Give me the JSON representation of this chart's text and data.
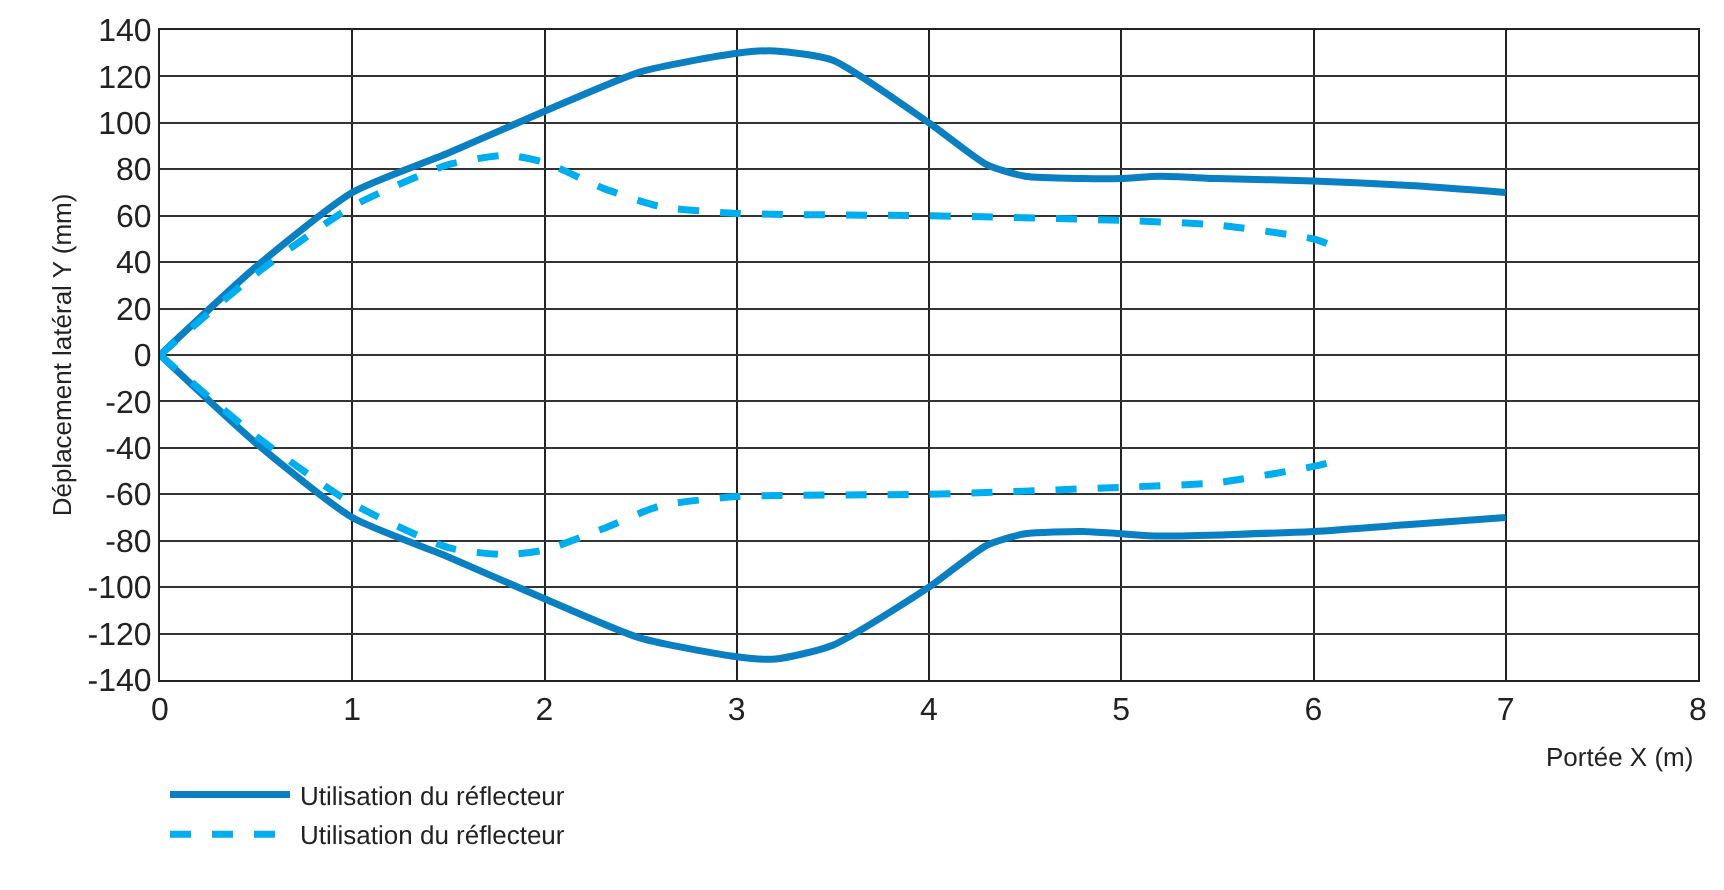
{
  "chart_data": {
    "type": "line",
    "xlabel": "Portée X (m)",
    "ylabel": "Déplacement latéral Y (mm)",
    "xlim": [
      0,
      8
    ],
    "xticks": [
      0,
      1,
      2,
      3,
      4,
      5,
      6,
      7,
      8
    ],
    "ylim": [
      -140,
      140
    ],
    "yticks": [
      -140,
      -120,
      -100,
      -80,
      -60,
      -40,
      -20,
      0,
      20,
      40,
      60,
      80,
      100,
      120,
      140
    ],
    "grid": true,
    "legend": "bottom left",
    "marker": "none",
    "series": [
      {
        "name": "Utilisation du réflecteur",
        "color": "#0a7fc1",
        "line_style": "solid",
        "x": [
          0,
          0.5,
          1,
          1.5,
          2,
          2.5,
          3,
          3.2,
          3.5,
          4,
          4.3,
          4.5,
          4.8,
          5,
          5.2,
          5.5,
          6,
          6.5,
          7
        ],
        "values": [
          0,
          38,
          70,
          87,
          105,
          122,
          130,
          131,
          127,
          100,
          82,
          77,
          76,
          76,
          77,
          76,
          75,
          73,
          70
        ]
      },
      {
        "color": "#0a7fc1",
        "line_style": "solid",
        "x": [
          0,
          0.5,
          1,
          1.5,
          2,
          2.5,
          3,
          3.2,
          3.5,
          4,
          4.3,
          4.5,
          4.8,
          5,
          5.2,
          6,
          6.5,
          7
        ],
        "values": [
          0,
          -38,
          -70,
          -87,
          -105,
          -122,
          -130,
          -131,
          -125,
          -100,
          -82,
          -77,
          -76,
          -77,
          -78,
          -76,
          -73,
          -70
        ]
      },
      {
        "name": "Utilisation du réflecteur",
        "color": "#00aeef",
        "line_style": "dashed",
        "x": [
          0,
          0.5,
          1,
          1.5,
          1.8,
          2,
          2.3,
          2.6,
          3,
          4,
          5,
          5.5,
          6,
          6.1
        ],
        "values": [
          0,
          35,
          64,
          82,
          86,
          83,
          72,
          64,
          61,
          60,
          58,
          56,
          50,
          47
        ]
      },
      {
        "color": "#00aeef",
        "line_style": "dashed",
        "x": [
          0,
          0.5,
          1,
          1.5,
          1.8,
          2,
          2.3,
          2.6,
          3,
          4,
          5,
          5.5,
          6,
          6.1
        ],
        "values": [
          0,
          -35,
          -64,
          -83,
          -86,
          -84,
          -75,
          -65,
          -61,
          -60,
          -57,
          -55,
          -48,
          -46
        ]
      }
    ]
  }
}
